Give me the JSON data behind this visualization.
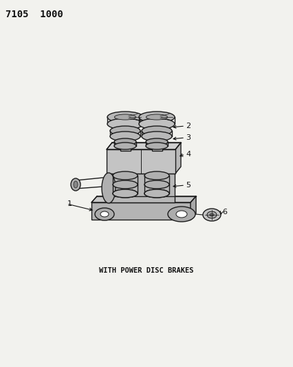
{
  "title_code": "7105  1000",
  "subtitle": "WITH POWER DISC BRAKES",
  "bg_color": "#f2f2ee",
  "line_color": "#1a1a1a",
  "text_color": "#111111",
  "fig_w": 4.27,
  "fig_h": 5.33,
  "dpi": 100
}
